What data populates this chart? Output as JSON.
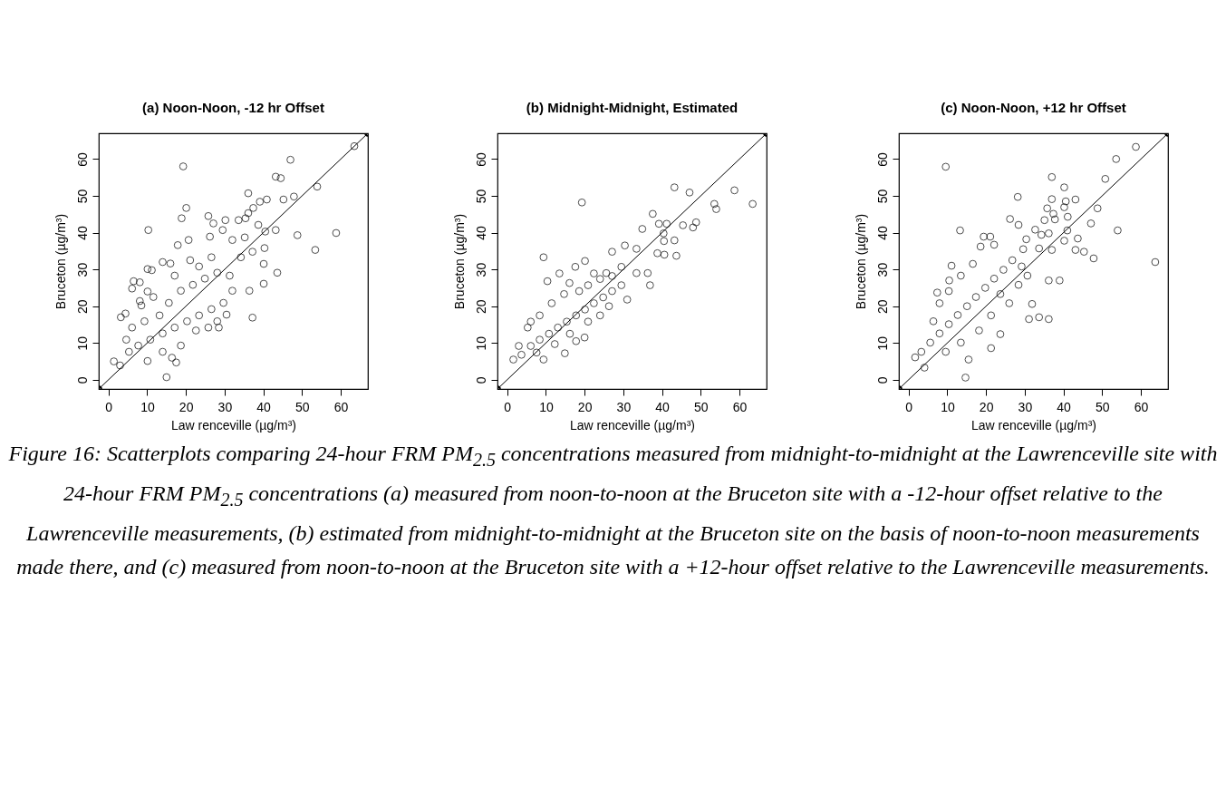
{
  "chart_data": [
    {
      "type": "scatter",
      "title": "(a) Noon-Noon, -12 hr Offset",
      "xlabel": "Law renceville (µg/m³)",
      "ylabel": "Bruceton (µg/m³)",
      "xlim": [
        -2.5,
        67
      ],
      "ylim": [
        -2.5,
        67
      ],
      "xticks": [
        0,
        10,
        20,
        30,
        40,
        50,
        60
      ],
      "yticks": [
        0,
        10,
        20,
        30,
        40,
        50,
        60
      ],
      "marker": "circle",
      "series": [
        {
          "color": "#000000",
          "x": [
            63.5,
            19.3,
            47,
            43.2,
            44.5,
            53.9,
            36.1,
            20.1,
            18.9,
            39.1,
            40.9,
            45.2,
            47.9,
            37.4,
            36.1,
            25.8,
            27.1,
            30.2,
            33.6,
            35.4,
            10.3,
            29.5,
            38.7,
            40.5,
            43.2,
            48.8,
            58.8,
            53.4,
            26.2,
            20.7,
            17.9,
            32,
            35.2,
            40.3,
            37.2,
            34.2,
            40.1,
            43.6,
            37.2,
            40.1,
            36.4,
            14,
            16,
            10.1,
            11.2,
            6.5,
            8.1,
            6.1,
            10.1,
            8.1,
            8.5,
            3.2,
            4.4,
            15,
            17.5,
            1.4,
            3,
            5.3,
            7.7,
            10.8,
            14,
            17.1,
            20.3,
            23.4,
            26.6,
            29.7,
            32,
            28.1,
            30.5,
            25.8,
            13.2,
            15.6,
            18.7,
            21.8,
            24.9,
            28.1,
            11.6,
            6.1,
            9.3,
            4.6,
            14,
            18.7,
            22.6,
            16.4,
            10.1,
            28.5,
            17.1,
            21.1,
            23.4,
            26.6,
            31.3
          ],
          "values": [
            63.5,
            58,
            59.8,
            55.2,
            54.8,
            52.5,
            50.7,
            46.7,
            43.9,
            48.4,
            49,
            49,
            49.8,
            46.7,
            45.3,
            44.5,
            42.5,
            43.4,
            43.4,
            43.9,
            40.7,
            40.7,
            42.1,
            40.3,
            40.7,
            39.3,
            39.9,
            35.3,
            38.9,
            38,
            36.6,
            38,
            38.7,
            35.8,
            34.8,
            33.3,
            31.5,
            29.1,
            16.9,
            26.1,
            24.2,
            32,
            31.6,
            30.1,
            29.8,
            26.8,
            26.5,
            24.8,
            24,
            21.4,
            20.2,
            17,
            18,
            0.7,
            4.7,
            5,
            3.9,
            7.6,
            9.3,
            10.9,
            12.6,
            14.2,
            15.9,
            17.5,
            19.2,
            20.9,
            24.2,
            15.9,
            17.7,
            14.2,
            17.5,
            20.9,
            24.2,
            25.8,
            27.5,
            29.1,
            22.5,
            14.2,
            15.9,
            10.9,
            7.6,
            9.3,
            13.4,
            6,
            5.1,
            14.2,
            28.3,
            32.5,
            30.8,
            33.3,
            28.3
          ]
        },
        {
          "type": "line",
          "color": "#000000",
          "x": [
            -2.5,
            67
          ],
          "values": [
            -2.5,
            67
          ]
        }
      ]
    },
    {
      "type": "scatter",
      "title": "(b) Midnight-Midnight, Estimated",
      "xlabel": "Law renceville (µg/m³)",
      "ylabel": "Bruceton (µg/m³)",
      "xlim": [
        -2.5,
        67
      ],
      "ylim": [
        -2.5,
        67
      ],
      "xticks": [
        0,
        10,
        20,
        30,
        40,
        50,
        60
      ],
      "yticks": [
        0,
        10,
        20,
        30,
        40,
        50,
        60
      ],
      "marker": "circle",
      "annotations": [
        "Figure 16: Scatterplots comparing 24-hour FRM PM$_{2.5}$ concentrations measured from midnight-to-midnight at the Lawrenceville site with 24-hour FRM PM$_{2.5}$ concentrations (a) measured from noon-to-noon at the Bruceton site with a -12-hour offset relative to the Lawrenceville measurements, (b) estimated from midnight-to-midnight at the Bruceton site on the basis of noon-to-noon measurements made there, and (c) measured from noon-to-noon at the Bruceton site with a +12-hour offset relative to the Lawrenceville measurements."
      ],
      "series": [
        {
          "color": "#000000",
          "x": [
            43.2,
            47.1,
            58.7,
            63.4,
            53.5,
            54,
            19.3,
            37.6,
            34.9,
            39.2,
            41.2,
            45.4,
            48,
            48.8,
            40.4,
            40.5,
            43.2,
            43.7,
            40.6,
            38.8,
            36.3,
            36.9,
            30.4,
            27.1,
            33.4,
            9.4,
            20.1,
            17.6,
            13.5,
            10.4,
            16.1,
            22.4,
            25.6,
            29.5,
            31,
            26.3,
            1.6,
            9.4,
            14.9,
            17.8,
            20,
            3.7,
            6.1,
            8.4,
            10.8,
            13.1,
            15.4,
            17.8,
            20.1,
            22.4,
            24.8,
            27.1,
            29.5,
            5.3,
            8.4,
            11.5,
            14.7,
            18.6,
            20.9,
            24,
            12.3,
            16.2,
            20.9,
            24,
            7.6,
            27.1,
            33.4,
            3,
            6.1
          ],
          "values": [
            52.3,
            50.9,
            51.5,
            47.8,
            47.8,
            46.4,
            48.2,
            45.1,
            41,
            42.4,
            42.4,
            42,
            41.4,
            42.8,
            39.8,
            37.7,
            37.9,
            33.7,
            34,
            34.4,
            29,
            25.7,
            36.5,
            34.8,
            35.6,
            33.3,
            32.3,
            30.7,
            28.9,
            26.8,
            26.3,
            28.9,
            29,
            30.7,
            21.8,
            20,
            5.5,
            5.5,
            7.2,
            10.5,
            11.5,
            6.8,
            9.2,
            10.9,
            12.5,
            14.2,
            15.8,
            17.5,
            19.1,
            20.8,
            22.4,
            24.1,
            25.7,
            14.2,
            17.5,
            20.8,
            23.3,
            24.1,
            25.7,
            27.4,
            9.7,
            12.5,
            15.8,
            17.5,
            7.4,
            28.2,
            29,
            9.2,
            15.8
          ]
        },
        {
          "type": "line",
          "color": "#000000",
          "x": [
            -2.5,
            67
          ],
          "values": [
            -2.5,
            67
          ]
        }
      ]
    },
    {
      "type": "scatter",
      "title": "(c) Noon-Noon, +12 hr Offset",
      "xlabel": "Law renceville (µg/m³)",
      "ylabel": "Bruceton (µg/m³)",
      "xlim": [
        -2.5,
        67
      ],
      "ylim": [
        -2.5,
        67
      ],
      "xticks": [
        0,
        10,
        20,
        30,
        40,
        50,
        60
      ],
      "yticks": [
        0,
        10,
        20,
        30,
        40,
        50,
        60
      ],
      "marker": "circle",
      "series": [
        {
          "color": "#000000",
          "x": [
            58.7,
            53.6,
            50.8,
            63.7,
            54,
            48.8,
            47.1,
            47.8,
            9.6,
            37,
            40.2,
            28.2,
            37,
            40.6,
            43.1,
            40.2,
            35.8,
            37.4,
            37.8,
            41.1,
            35.1,
            26.2,
            28.4,
            13.3,
            19.4,
            21.1,
            18.6,
            22.1,
            30.4,
            32.7,
            34.3,
            36.2,
            41,
            43.7,
            45.3,
            43.1,
            40.2,
            37,
            33.7,
            29.6,
            11.1,
            7.4,
            10.5,
            39,
            36.2,
            31.1,
            33.7,
            36.2,
            31.9,
            14.7,
            23.7,
            21.3,
            15.5,
            1.7,
            4.1,
            3.3,
            5.6,
            8,
            10.4,
            12.7,
            15.1,
            17.4,
            19.8,
            22.1,
            24.5,
            26.8,
            29.2,
            23.7,
            26,
            21.3,
            18.2,
            13.5,
            9.6,
            8,
            10.4,
            13.5,
            16.6,
            6.4,
            28.4,
            30.7
          ],
          "values": [
            63.3,
            60,
            54.6,
            32,
            40.6,
            46.6,
            42.5,
            33,
            57.9,
            55.1,
            52.3,
            49.7,
            49.1,
            48.5,
            49,
            46.9,
            46.6,
            45.1,
            43.6,
            44.3,
            43.4,
            43.7,
            42.1,
            40.6,
            38.9,
            38.9,
            36.2,
            36.7,
            38.2,
            40.8,
            39.4,
            39.8,
            40.6,
            38.4,
            34.8,
            35.3,
            37.8,
            35.3,
            35.7,
            35.5,
            31,
            23.7,
            27,
            27,
            27,
            16.5,
            17,
            16.5,
            20.6,
            0.6,
            12.4,
            8.6,
            5.5,
            6.1,
            3.3,
            7.6,
            10.1,
            12.6,
            15.1,
            17.6,
            20,
            22.5,
            25,
            27.5,
            29.9,
            32.5,
            30.8,
            23.3,
            20.8,
            17.5,
            13.4,
            10.1,
            7.6,
            20.8,
            24.1,
            28.3,
            31.5,
            15.9,
            25.8,
            28.3
          ]
        },
        {
          "type": "line",
          "color": "#000000",
          "x": [
            -2.5,
            67
          ],
          "values": [
            -2.5,
            67
          ]
        }
      ]
    }
  ]
}
